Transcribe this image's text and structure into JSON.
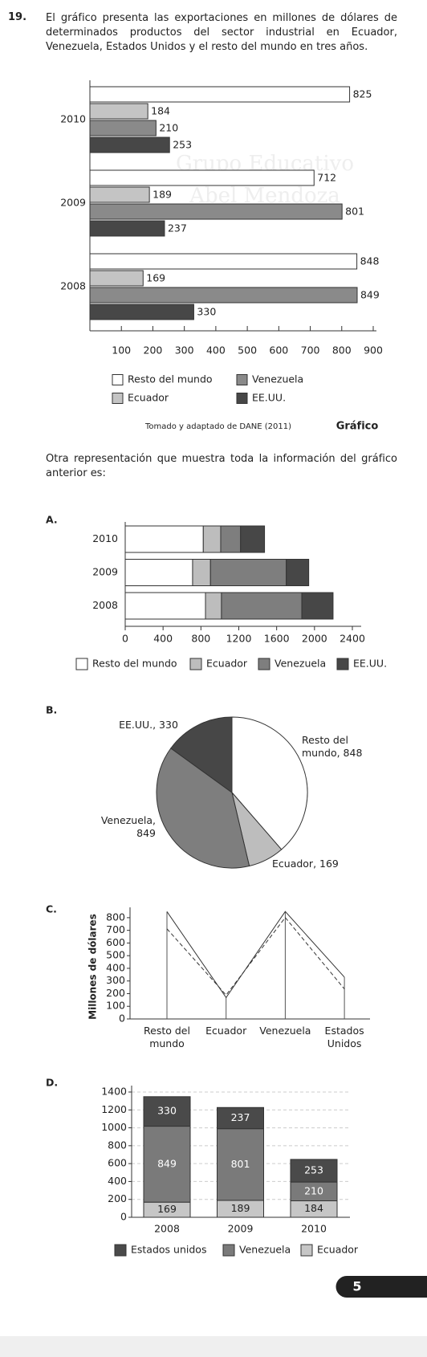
{
  "question": {
    "number": "19.",
    "text": "El gráfico presenta las exportaciones en millones de dólares de determinados productos del sector industrial en Ecuador, Venezuela, Estados Unidos y el resto del mundo en tres años.",
    "prompt": "Otra representación que muestra toda la información del gráfico anterior es:"
  },
  "watermark": [
    "Grupo Educativo",
    "Abel Mendoza"
  ],
  "chart_data": [
    {
      "type": "hbar",
      "categories": [
        "2010",
        "2009",
        "2008"
      ],
      "series": [
        {
          "name": "Resto del mundo",
          "color": "#ffffff",
          "values": [
            825,
            712,
            848
          ]
        },
        {
          "name": "Ecuador",
          "color": "#c4c4c4",
          "values": [
            184,
            189,
            169
          ]
        },
        {
          "name": "Venezuela",
          "color": "#8a8a8a",
          "values": [
            210,
            801,
            849
          ]
        },
        {
          "name": "EE.UU.",
          "color": "#474747",
          "values": [
            253,
            237,
            330
          ]
        }
      ],
      "xlim": [
        0,
        900
      ],
      "xticks": [
        100,
        200,
        300,
        400,
        500,
        600,
        700,
        800,
        900
      ],
      "source": "Tomado y adaptado de DANE (2011)",
      "caption": "Gráfico"
    },
    {
      "type": "stacked-hbar",
      "option": "A.",
      "categories": [
        "2010",
        "2009",
        "2008"
      ],
      "series": [
        {
          "name": "Resto del mundo",
          "color": "#ffffff",
          "values": [
            825,
            712,
            848
          ]
        },
        {
          "name": "Ecuador",
          "color": "#bdbdbd",
          "values": [
            184,
            189,
            169
          ]
        },
        {
          "name": "Venezuela",
          "color": "#7e7e7e",
          "values": [
            210,
            801,
            849
          ]
        },
        {
          "name": "EE.UU.",
          "color": "#474747",
          "values": [
            253,
            237,
            330
          ]
        }
      ],
      "xlim": [
        0,
        2400
      ],
      "xticks": [
        0,
        400,
        800,
        1200,
        1600,
        2000,
        2400
      ]
    },
    {
      "type": "pie",
      "option": "B.",
      "values": [
        848,
        169,
        849,
        330
      ],
      "value_labels": [
        "Resto del mundo, 848",
        "Ecuador, 169",
        "Venezuela, 849",
        "EE.UU., 330"
      ],
      "colors": [
        "#ffffff",
        "#bdbdbd",
        "#7e7e7e",
        "#474747"
      ]
    },
    {
      "type": "line",
      "option": "C.",
      "y_label": "Millones de dólares",
      "categories": [
        "Resto del mundo",
        "Ecuador",
        "Venezuela",
        "Estados Unidos"
      ],
      "series": [
        {
          "color": "#333333",
          "dash": false,
          "values": [
            848,
            169,
            849,
            330
          ]
        },
        {
          "color": "#333333",
          "dash": true,
          "values": [
            712,
            189,
            801,
            237
          ]
        }
      ],
      "ylim": [
        0,
        850
      ],
      "yticks": [
        0,
        100,
        200,
        300,
        400,
        500,
        600,
        700,
        800
      ]
    },
    {
      "type": "stacked-bar",
      "option": "D.",
      "categories": [
        "2008",
        "2009",
        "2010"
      ],
      "series": [
        {
          "name": "Estados unidos",
          "color": "#4a4a4a",
          "values": [
            330,
            237,
            253
          ]
        },
        {
          "name": "Venezuela",
          "color": "#7a7a7a",
          "values": [
            849,
            801,
            210
          ]
        },
        {
          "name": "Ecuador",
          "color": "#c6c6c6",
          "values": [
            169,
            189,
            184
          ]
        }
      ],
      "ylim": [
        0,
        1400
      ],
      "yticks": [
        0,
        200,
        400,
        600,
        800,
        1000,
        1200,
        1400
      ],
      "grid": true
    }
  ],
  "page_number": "5"
}
